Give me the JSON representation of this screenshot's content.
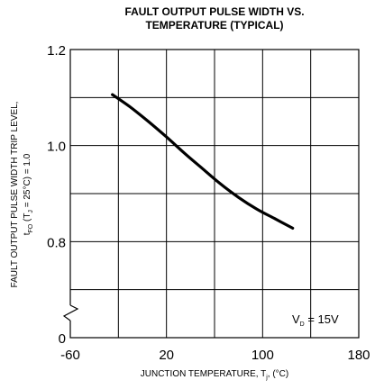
{
  "chart_data": {
    "type": "line",
    "title_lines": [
      "FAULT OUTPUT PULSE WIDTH VS.",
      "TEMPERATURE (TYPICAL)"
    ],
    "xlabel": {
      "main": "JUNCTION TEMPERATURE, T",
      "sub": "j",
      "end": ", (°C)"
    },
    "ylabel": {
      "line1": "FAULT OUTPUT PULSE WIDTH TRIP LEVEL,",
      "line2": {
        "a": "t",
        "a_sub": "FO",
        "b": " (T",
        "b_sub": "J",
        "c": " = 25°C) = 1.0"
      }
    },
    "xlim": [
      -60,
      180
    ],
    "ylim": [
      0.6,
      1.2
    ],
    "x_ticks": [
      {
        "value": -60,
        "label": "-60"
      },
      {
        "value": 20,
        "label": "20"
      },
      {
        "value": 100,
        "label": "100"
      },
      {
        "value": 180,
        "label": "180"
      }
    ],
    "y_ticks": [
      {
        "value": 1.2,
        "label": "1.2"
      },
      {
        "value": 1.0,
        "label": "1.0"
      },
      {
        "value": 0.8,
        "label": "0.8"
      },
      {
        "value": 0.6,
        "label": "0"
      }
    ],
    "y_axis_break": true,
    "grid": true,
    "annotation": {
      "a": "V",
      "a_sub": "D",
      "b": " = 15V"
    },
    "series": [
      {
        "x": [
          -25,
          -10,
          5,
          20,
          35,
          50,
          65,
          80,
          95,
          110,
          125
        ],
        "y": [
          1.106,
          1.08,
          1.05,
          1.018,
          0.984,
          0.952,
          0.92,
          0.892,
          0.868,
          0.848,
          0.828
        ]
      }
    ]
  }
}
